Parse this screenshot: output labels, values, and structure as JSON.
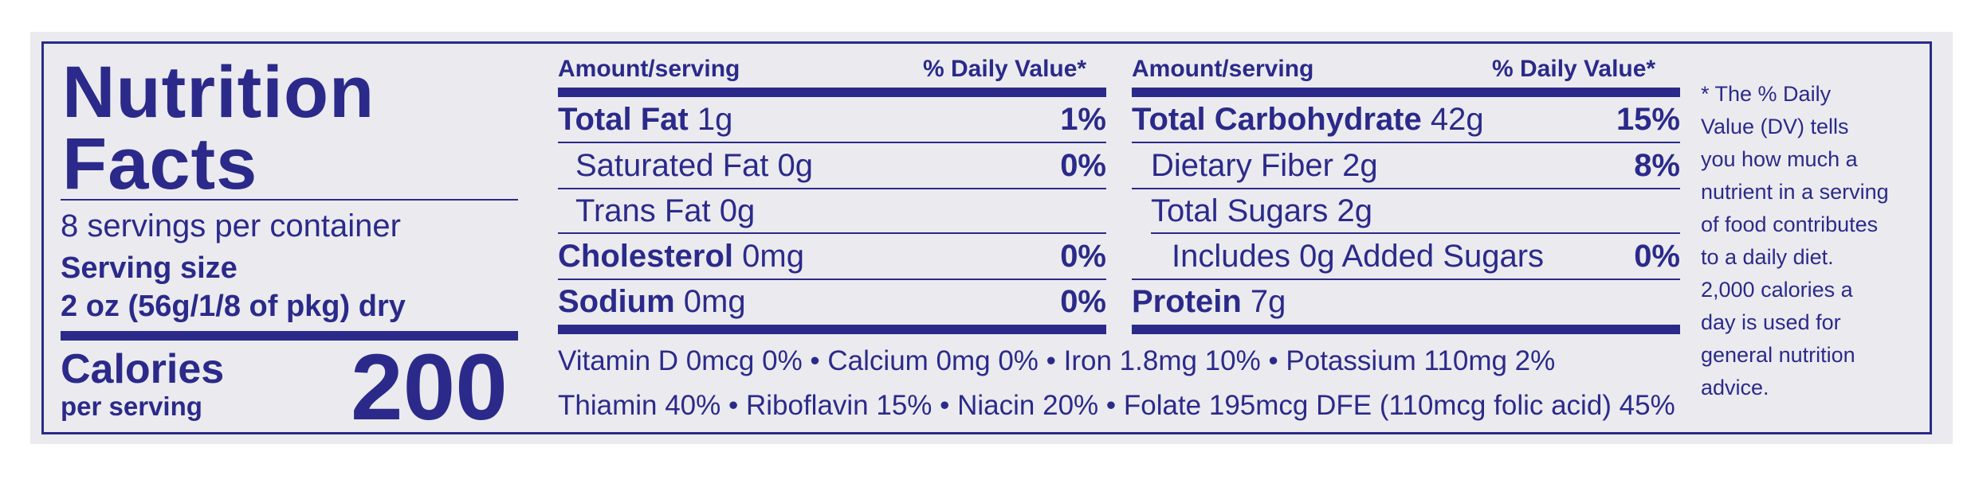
{
  "label": {
    "title_line1": "Nutrition",
    "title_line2": "Facts",
    "servings_per_container": "8 servings per container",
    "serving_size_label": "Serving size",
    "serving_size_value": "2 oz (56g/1/8 of pkg) dry",
    "calories_label": "Calories",
    "calories_sub": "per serving",
    "calories_value": "200"
  },
  "left_table": {
    "header_amount": "Amount/serving",
    "header_dv": "% Daily Value*",
    "rows": [
      {
        "name": "Total Fat",
        "amount": "1g",
        "dv": "1%"
      },
      {
        "name": "Saturated Fat",
        "amount": "0g",
        "dv": "0%"
      },
      {
        "name": "Trans Fat",
        "amount": "0g",
        "dv": ""
      },
      {
        "name": "Cholesterol",
        "amount": "0mg",
        "dv": "0%"
      },
      {
        "name": "Sodium",
        "amount": "0mg",
        "dv": "0%"
      }
    ]
  },
  "right_table": {
    "header_amount": "Amount/serving",
    "header_dv": "% Daily Value*",
    "rows": [
      {
        "name": "Total Carbohydrate",
        "amount": "42g",
        "dv": "15%"
      },
      {
        "name": "Dietary Fiber",
        "amount": "2g",
        "dv": "8%"
      },
      {
        "name": "Total Sugars",
        "amount": "2g",
        "dv": ""
      },
      {
        "name": "Includes 0g Added Sugars",
        "amount": "",
        "dv": "0%"
      },
      {
        "name": "Protein",
        "amount": "7g",
        "dv": ""
      }
    ]
  },
  "micros": {
    "line1": "Vitamin D 0mcg 0%  •  Calcium 0mg 0%  •  Iron 1.8mg 10%  •  Potassium 110mg 2%",
    "line2": "Thiamin 40% • Riboflavin 15% • Niacin 20% • Folate 195mcg DFE (110mcg folic acid) 45%"
  },
  "footnote": "* The % Daily Value (DV) tells you how much a nutrient in a serving of food contributes to a daily diet. 2,000 calories a day is used for general nutrition advice.",
  "colors": {
    "ink": "#2b2a8a",
    "panel": "#ebebef",
    "page": "#ffffff"
  }
}
